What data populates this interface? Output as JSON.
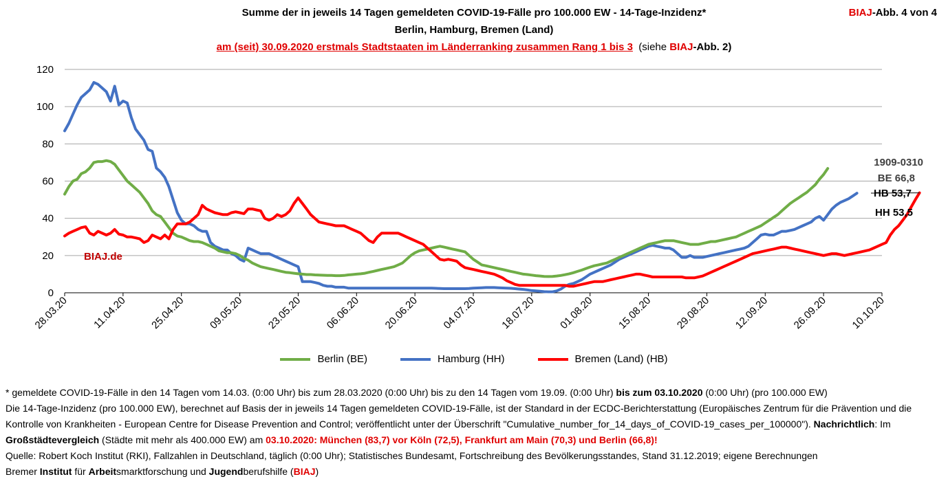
{
  "header": {
    "title_line1": "Summe der in jeweils 14 Tagen gemeldeten COVID-19-Fälle pro 100.000 EW - 14-Tage-Inzidenz*",
    "title_line2": "Berlin, Hamburg, Bremen (Land)",
    "title_line3_red": "am (seit) 30.09.2020 erstmals Stadtstaaten im Länderranking zusammen Rang 1 bis 3",
    "title_line3_siehe": "(siehe ",
    "title_line3_biaj": "BIAJ",
    "title_line3_tail": "-Abb. 2)",
    "badge_brand": "BIAJ",
    "badge_text": "-Abb. 4 von 4"
  },
  "chart_data": {
    "type": "line",
    "x_start": "28.03.20",
    "x_ticks": [
      "28.03.20",
      "11.04.20",
      "25.04.20",
      "09.05.20",
      "23.05.20",
      "06.06.20",
      "20.06.20",
      "04.07.20",
      "18.07.20",
      "01.08.20",
      "15.08.20",
      "29.08.20",
      "12.09.20",
      "26.09.20",
      "10.10.20"
    ],
    "ylim": [
      0,
      120
    ],
    "y_ticks": [
      0,
      20,
      40,
      60,
      80,
      100,
      120
    ],
    "grid": true,
    "legend_position": "bottom",
    "watermark": "BIAJ.de",
    "annotations": {
      "date_range": "1909-0310",
      "be": "BE 66,8",
      "hb": "HB 53,7",
      "hh": "HH 53,5"
    },
    "series": [
      {
        "name": "Berlin (BE)",
        "color": "#70ad47",
        "values": [
          53,
          57,
          60,
          61,
          64,
          65,
          67,
          70,
          70.5,
          70.5,
          71,
          70.5,
          69,
          66,
          63,
          60,
          58,
          56,
          54,
          51,
          48,
          44,
          42,
          41,
          38,
          35,
          32,
          30.5,
          30,
          29,
          28,
          27.5,
          27.5,
          27,
          26,
          25,
          24,
          22.5,
          22,
          21.5,
          21.5,
          21,
          20,
          18.5,
          17.5,
          16,
          15,
          14,
          13.5,
          13,
          12.5,
          12,
          11.5,
          11,
          10.8,
          10.5,
          10.2,
          10,
          9.8,
          9.8,
          9.6,
          9.5,
          9.4,
          9.3,
          9.3,
          9.2,
          9.2,
          9.3,
          9.6,
          9.8,
          10,
          10.2,
          10.5,
          11,
          11.5,
          12,
          12.5,
          13,
          13.5,
          14,
          15,
          16,
          18,
          20,
          21.5,
          22.5,
          23,
          23.5,
          24,
          24.5,
          25,
          24.5,
          24,
          23.5,
          23,
          22.5,
          22,
          20,
          18,
          16.5,
          15,
          14.5,
          14,
          13.5,
          13,
          12.5,
          12,
          11.5,
          11,
          10.5,
          10,
          9.8,
          9.5,
          9.2,
          9,
          8.8,
          8.7,
          8.8,
          9,
          9.3,
          9.7,
          10.2,
          10.8,
          11.5,
          12.2,
          13,
          13.8,
          14.5,
          15,
          15.5,
          16,
          17,
          18,
          19,
          20,
          21,
          22,
          23,
          24,
          25,
          26,
          26.5,
          27,
          27.5,
          28,
          28,
          28,
          27.5,
          27,
          26.5,
          26,
          26,
          26,
          26.5,
          27,
          27.5,
          27.5,
          28,
          28.5,
          29,
          29.5,
          30,
          31,
          32,
          33,
          34,
          35,
          36,
          37.5,
          39,
          40.5,
          42,
          44,
          46,
          48,
          49.5,
          51,
          52.5,
          54,
          56,
          58,
          61,
          63.5,
          66.8
        ]
      },
      {
        "name": "Hamburg (HH)",
        "color": "#4472c4",
        "values": [
          87,
          91,
          96,
          101,
          105,
          107,
          109,
          113,
          112,
          110,
          108,
          103,
          111,
          101,
          103,
          102,
          94,
          88,
          85,
          82,
          77,
          76,
          67,
          65,
          62,
          57,
          50,
          43,
          39,
          37,
          37,
          36,
          34,
          33,
          33,
          27,
          25,
          24,
          23,
          23,
          21,
          20,
          18,
          17,
          24,
          23,
          22,
          21,
          21,
          21,
          20,
          19,
          18,
          17,
          16,
          15,
          14,
          6,
          6,
          6,
          5.5,
          5,
          4,
          3.5,
          3.5,
          3,
          3,
          3,
          2.5,
          2.5,
          2.5,
          2.5,
          2.5,
          2.5,
          2.5,
          2.5,
          2.5,
          2.5,
          2.5,
          2.5,
          2.5,
          2.5,
          2.5,
          2.5,
          2.5,
          2.5,
          2.5,
          2.5,
          2.5,
          2.4,
          2.3,
          2.2,
          2.2,
          2.2,
          2.2,
          2.2,
          2.2,
          2.3,
          2.5,
          2.6,
          2.7,
          2.8,
          2.8,
          2.8,
          2.7,
          2.6,
          2.5,
          2.4,
          2.2,
          2,
          1.8,
          1.5,
          1.2,
          1,
          0.8,
          0.6,
          0.5,
          0.5,
          1,
          2,
          3.5,
          4.5,
          5,
          6,
          7,
          8.5,
          10,
          11,
          12,
          13,
          14,
          15,
          16.5,
          18,
          19,
          20,
          21,
          22,
          23,
          24,
          25,
          25.5,
          25,
          24.5,
          24,
          24,
          23,
          21,
          19,
          19,
          20,
          19,
          19,
          19,
          19.5,
          20,
          20.5,
          21,
          21.5,
          22,
          22.5,
          23,
          23.5,
          24,
          25,
          27,
          29,
          31,
          31.5,
          31,
          31,
          32,
          33,
          33,
          33.5,
          34,
          35,
          36,
          37,
          38,
          40,
          41,
          39,
          42,
          45,
          47,
          48.5,
          49.5,
          50.5,
          52,
          53.5
        ]
      },
      {
        "name": "Bremen (Land) (HB)",
        "color": "#ff0000",
        "values": [
          30.5,
          32,
          33,
          34,
          35,
          35.5,
          32,
          31,
          33,
          32,
          31,
          32,
          34,
          31.5,
          31,
          30,
          30,
          29.5,
          29,
          27,
          28,
          31,
          30,
          29,
          31,
          29,
          34,
          37,
          37,
          37,
          38,
          40,
          42,
          47,
          45,
          44,
          43,
          42.5,
          42,
          42,
          43,
          43.5,
          43,
          42.5,
          45,
          45,
          44.5,
          44,
          40,
          39,
          40,
          42,
          41,
          42,
          44,
          48,
          51,
          48,
          45,
          42,
          40,
          38,
          37.5,
          37,
          36.5,
          36,
          36,
          36,
          35,
          34,
          33,
          32,
          30,
          28,
          27,
          30,
          32,
          32,
          32,
          32,
          32,
          31,
          30,
          29,
          28,
          27,
          26,
          24,
          22,
          20,
          18,
          17.5,
          18,
          17.5,
          17,
          15,
          13.5,
          13,
          12.5,
          12,
          11.5,
          11,
          10.5,
          10,
          9,
          8,
          6.5,
          5.5,
          4.5,
          4,
          4,
          4,
          4,
          4,
          4,
          4,
          4,
          4,
          4,
          4,
          4,
          3.5,
          3.5,
          4,
          4.5,
          5,
          5.5,
          6,
          6,
          6,
          6.5,
          7,
          7.5,
          8,
          8.5,
          9,
          9.5,
          10,
          10,
          9.5,
          9,
          8.5,
          8.5,
          8.5,
          8.5,
          8.5,
          8.5,
          8.5,
          8.5,
          8,
          8,
          8,
          8.5,
          9,
          10,
          11,
          12,
          13,
          14,
          15,
          16,
          17,
          18,
          19,
          20,
          21,
          21.5,
          22,
          22.5,
          23,
          23.5,
          24,
          24.5,
          24.5,
          24,
          23.5,
          23,
          22.5,
          22,
          21.5,
          21,
          20.5,
          20,
          20.5,
          21,
          21,
          20.5,
          20,
          20.5,
          21,
          21.5,
          22,
          22.5,
          23,
          24,
          25,
          26,
          27,
          31,
          34,
          36,
          39,
          42,
          46,
          50,
          53.7
        ]
      }
    ]
  },
  "notes": {
    "line1_a": "* gemeldete COVID-19-Fälle in den 14 Tagen vom 14.03. (0:00 Uhr) bis zum 28.03.2020 (0:00 Uhr) bis zu den 14 Tagen vom 19.09. (0:00 Uhr) ",
    "line1_bold": "bis zum 03.10.2020",
    "line1_b": " (0:00 Uhr) (pro 100.000 EW)",
    "line2": "Die 14-Tage-Inzidenz (pro 100.000  EW), berechnet auf Basis der in jeweils 14 Tagen gemeldeten COVID-19-Fälle, ist der Standard in der ECDC-Berichterstattung  (Europäisches Zentrum für die Prävention und die Kontrolle von Krankheiten  - European Centre for Disease Prevention and Control; veröffentlicht unter der Überschrift \"Cumulative_number_for_14_days_of_COVID-19_cases_per_100000\"). ",
    "line2_bold1": "Nachrichtlich",
    "line2_mid": ": Im ",
    "line2_bold2": "Großstädtevergleich",
    "line2_tail": " (Städte mit mehr als 400.000 EW) am ",
    "line2_red": "03.10.2020: München (83,7) vor Köln (72,5), Frankfurt am Main (70,3) und Berlin (66,8)!",
    "line3": "Quelle: Robert Koch Institut (RKI), Fallzahlen in Deutschland, täglich (0:00 Uhr); Statistisches Bundesamt, Fortschreibung des Bevölkerungsstandes, Stand 31.12.2019; eigene Berechnungen",
    "line4_a": "Bremer ",
    "line4_b1": "Institut",
    "line4_c": " für ",
    "line4_b2": "Arbeit",
    "line4_d": "smarktforschung und ",
    "line4_b3": "Jugend",
    "line4_e": "berufshilfe (",
    "line4_red": "BIAJ",
    "line4_f": ")"
  }
}
